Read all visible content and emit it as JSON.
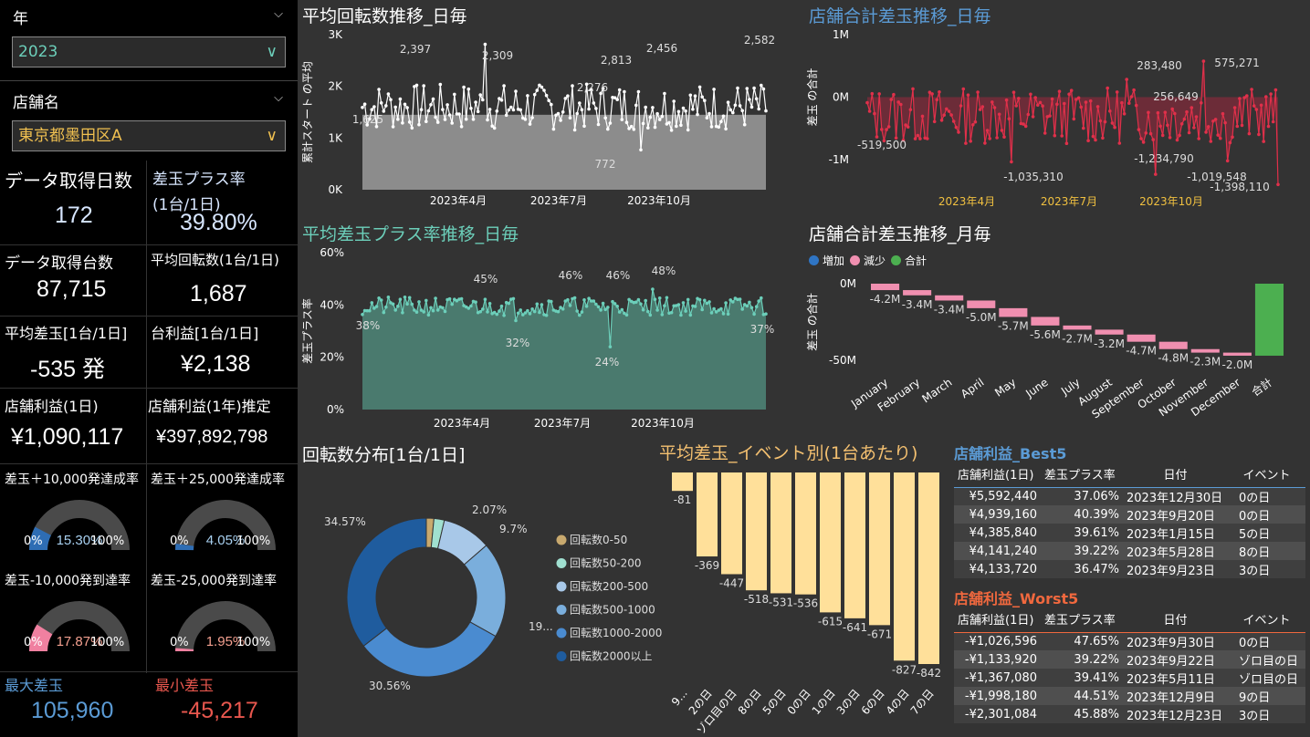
{
  "filters": {
    "year": {
      "label": "年",
      "value": "2023"
    },
    "store": {
      "label": "店舗名",
      "value": "東京都墨田区A"
    }
  },
  "kpi": {
    "days": {
      "label": "データ取得日数",
      "value": "172"
    },
    "plus_rate": {
      "label": "差玉プラス率",
      "sublabel": "(1台/1日)",
      "value": "39.80%"
    },
    "machines": {
      "label": "データ取得台数",
      "value": "87,715"
    },
    "avg_spins": {
      "label": "平均回転数(1台/1日)",
      "value": "1,687"
    },
    "avg_diff": {
      "label": "平均差玉[1台/1日]",
      "value": "-535 発"
    },
    "machine_profit": {
      "label": "台利益[1台/1日]",
      "value": "¥2,138"
    },
    "store_profit_day": {
      "label": "店舗利益(1日)",
      "value": "¥1,090,117"
    },
    "store_profit_year": {
      "label": "店舗利益(1年)推定",
      "value": "¥397,892,798"
    },
    "max_diff": {
      "label": "最大差玉",
      "value": "105,960",
      "color": "#5b9bd5"
    },
    "min_diff": {
      "label": "最小差玉",
      "value": "-45,217",
      "color": "#e8574e"
    }
  },
  "gauges": [
    {
      "label": "差玉＋10,000発達成率",
      "value": "15.30%",
      "pct": 15.3,
      "color": "#2e6db4",
      "min": "0%",
      "max": "100%"
    },
    {
      "label": "差玉＋25,000発達成率",
      "value": "4.05%",
      "pct": 4.05,
      "color": "#2e6db4",
      "min": "0%",
      "max": "100%"
    },
    {
      "label": "差玉-10,000発到達率",
      "value": "17.87%",
      "pct": 17.87,
      "color": "#f080a0",
      "min": "0%",
      "max": "100%"
    },
    {
      "label": "差玉-25,000発到達率",
      "value": "1.95%",
      "pct": 1.95,
      "color": "#f080a0",
      "min": "0%",
      "max": "100%"
    }
  ],
  "charts": {
    "spins_daily": {
      "title": "平均回転数推移_日毎",
      "ylabel": "累計スタート の平均",
      "yticks": [
        "3K",
        "2K",
        "1K",
        "0K"
      ],
      "xticks": [
        "2023年4月",
        "2023年7月",
        "2023年10月"
      ],
      "labels": [
        "2,397",
        "2,309",
        "2,813",
        "2,276",
        "2,456",
        "2,582",
        "1,625",
        "772"
      ]
    },
    "store_daily": {
      "title": "店舗合計差玉推移_日毎",
      "ylabel": "差玉 の合計",
      "yticks": [
        "1M",
        "0M",
        "-1M"
      ],
      "xticks": [
        "2023年4月",
        "2023年7月",
        "2023年10月"
      ],
      "labels": [
        "283,480",
        "575,271",
        "256,649",
        "-519,500",
        "-1,035,310",
        "-1,234,790",
        "-1,019,548",
        "-1,398,110"
      ]
    },
    "plus_daily": {
      "title": "平均差玉プラス率推移_日毎",
      "ylabel": "差玉プラス率",
      "yticks": [
        "60%",
        "40%",
        "20%",
        "0%"
      ],
      "xticks": [
        "2023年4月",
        "2023年7月",
        "2023年10月"
      ],
      "labels": [
        "45%",
        "46%",
        "46%",
        "48%",
        "38%",
        "32%",
        "24%",
        "37%"
      ]
    },
    "store_monthly": {
      "title": "店舗合計差玉推移_月毎",
      "ylabel": "差玉 の合計",
      "yticks": [
        "0M",
        "-50M"
      ],
      "legend": [
        {
          "name": "増加",
          "color": "#2f75c4"
        },
        {
          "name": "減少",
          "color": "#f08fb0"
        },
        {
          "name": "合計",
          "color": "#4caf50"
        }
      ],
      "categories": [
        "January",
        "February",
        "March",
        "April",
        "May",
        "June",
        "July",
        "August",
        "September",
        "October",
        "November",
        "December",
        "合計"
      ],
      "labels": [
        "-4.2M",
        "-3.4M",
        "-3.4M",
        "-5.0M",
        "-5.7M",
        "-5.6M",
        "-2.7M",
        "-3.2M",
        "-4.7M",
        "-4.8M",
        "-2.3M",
        "-2.0M"
      ]
    }
  },
  "chart_data": [
    {
      "type": "line",
      "title": "平均回転数推移_日毎",
      "ylabel": "累計スタート の平均",
      "ylim": [
        0,
        3000
      ],
      "annotations": [
        {
          "label": "2,397",
          "y": 2397
        },
        {
          "label": "2,309",
          "y": 2309
        },
        {
          "label": "2,813",
          "y": 2813
        },
        {
          "label": "2,276",
          "y": 2276
        },
        {
          "label": "2,456",
          "y": 2456
        },
        {
          "label": "2,582",
          "y": 2582
        },
        {
          "label": "1,625",
          "y": 1625
        },
        {
          "label": "772",
          "y": 772
        }
      ]
    },
    {
      "type": "line",
      "title": "店舗合計差玉推移_日毎",
      "ylabel": "差玉 の合計",
      "ylim": [
        -1300000,
        1300000
      ]
    },
    {
      "type": "area",
      "title": "平均差玉プラス率推移_日毎",
      "ylabel": "差玉プラス率",
      "ylim": [
        0,
        60
      ]
    },
    {
      "type": "bar",
      "title": "店舗合計差玉推移_月毎",
      "categories": [
        "January",
        "February",
        "March",
        "April",
        "May",
        "June",
        "July",
        "August",
        "September",
        "October",
        "November",
        "December",
        "合計"
      ],
      "values": [
        -4.2,
        -3.4,
        -3.4,
        -5.0,
        -5.7,
        -5.6,
        -2.7,
        -3.2,
        -4.7,
        -4.8,
        -2.3,
        -2.0,
        -47.0
      ]
    },
    {
      "type": "pie",
      "title": "回転数分布[1台/1日]",
      "categories": [
        "回転数0-50",
        "回転数50-200",
        "回転数200-500",
        "回転数500-1000",
        "回転数1000-2000",
        "回転数2000以上"
      ],
      "values": [
        1.5,
        2.07,
        9.7,
        19,
        30.56,
        34.57
      ],
      "colors": [
        "#c8a96e",
        "#a0e0d0",
        "#a8c8e8",
        "#7aaedc",
        "#4a8bd0",
        "#1f5c9e"
      ],
      "labels": [
        "",
        "2.07%",
        "9.7%",
        "19...",
        "30.56%",
        "34.57%"
      ]
    },
    {
      "type": "bar",
      "title": "平均差玉_イベント別(1台あたり)",
      "categories": [
        "9...",
        "2の日",
        "ゾロ目の日",
        "8の日",
        "5の日",
        "0の日",
        "1の日",
        "3の日",
        "6の日",
        "4の日",
        "7の日"
      ],
      "values": [
        -81,
        -369,
        -447,
        -518,
        -531,
        -536,
        -615,
        -641,
        -671,
        -827,
        -842
      ]
    }
  ],
  "donut": {
    "title": "回転数分布[1台/1日]"
  },
  "event_bar": {
    "title": "平均差玉_イベント別(1台あたり)"
  },
  "best5": {
    "title": "店舗利益_Best5",
    "columns": [
      "店舗利益(1日)",
      "差玉プラス率",
      "日付",
      "イベント"
    ],
    "rows": [
      [
        "¥5,592,440",
        "37.06%",
        "2023年12月30日",
        "0の日"
      ],
      [
        "¥4,939,160",
        "40.39%",
        "2023年9月20日",
        "0の日"
      ],
      [
        "¥4,385,840",
        "39.61%",
        "2023年1月15日",
        "5の日"
      ],
      [
        "¥4,141,240",
        "39.22%",
        "2023年5月28日",
        "8の日"
      ],
      [
        "¥4,133,720",
        "36.47%",
        "2023年9月23日",
        "3の日"
      ]
    ]
  },
  "worst5": {
    "title": "店舗利益_Worst5",
    "columns": [
      "店舗利益(1日)",
      "差玉プラス率",
      "日付",
      "イベント"
    ],
    "rows": [
      [
        "-¥1,026,596",
        "47.65%",
        "2023年9月30日",
        "0の日"
      ],
      [
        "-¥1,133,920",
        "39.22%",
        "2023年9月22日",
        "ゾロ目の日"
      ],
      [
        "-¥1,367,080",
        "39.41%",
        "2023年5月11日",
        "ゾロ目の日"
      ],
      [
        "-¥1,998,180",
        "44.51%",
        "2023年12月9日",
        "9の日"
      ],
      [
        "-¥2,301,084",
        "45.88%",
        "2023年12月23日",
        "3の日"
      ]
    ]
  }
}
